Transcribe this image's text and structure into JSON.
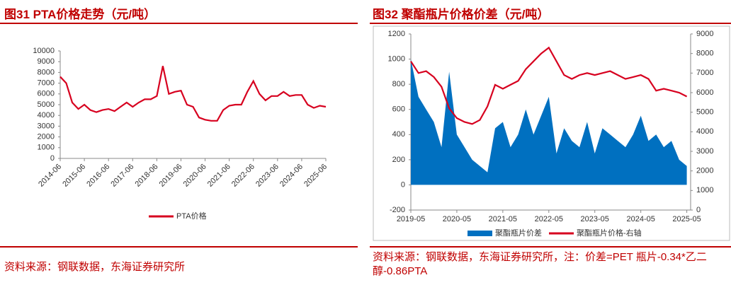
{
  "chart_data": [
    {
      "type": "line",
      "title": "图31  PTA价格走势（元/吨）",
      "source": "资料来源：钢联数据，东海证券研究所",
      "x": [
        "2014-06",
        "2014-09",
        "2014-12",
        "2015-03",
        "2015-06",
        "2015-09",
        "2015-12",
        "2016-03",
        "2016-06",
        "2016-09",
        "2016-12",
        "2017-03",
        "2017-06",
        "2017-09",
        "2017-12",
        "2018-03",
        "2018-06",
        "2018-09",
        "2018-12",
        "2019-03",
        "2019-06",
        "2019-09",
        "2019-12",
        "2020-03",
        "2020-06",
        "2020-09",
        "2020-12",
        "2021-03",
        "2021-06",
        "2021-09",
        "2021-12",
        "2022-03",
        "2022-06",
        "2022-09",
        "2022-12",
        "2023-03",
        "2023-06",
        "2023-09",
        "2023-12",
        "2024-03",
        "2024-06",
        "2024-09",
        "2024-12",
        "2025-03",
        "2025-06"
      ],
      "series": [
        {
          "name": "PTA价格",
          "color": "#d7001f",
          "values": [
            7600,
            7000,
            5200,
            4600,
            5000,
            4500,
            4300,
            4500,
            4600,
            4400,
            4800,
            5200,
            4800,
            5200,
            5500,
            5500,
            5800,
            8600,
            6000,
            6200,
            6300,
            5000,
            4800,
            3800,
            3600,
            3500,
            3500,
            4500,
            4900,
            5000,
            5000,
            6200,
            7200,
            6000,
            5400,
            5800,
            5800,
            6200,
            5800,
            5900,
            5900,
            5000,
            4700,
            4900,
            4800
          ]
        }
      ],
      "xlim": [
        "2014-06",
        "2025-06"
      ],
      "xticks": [
        "2014-06",
        "2015-06",
        "2016-06",
        "2017-06",
        "2018-06",
        "2019-06",
        "2020-06",
        "2021-06",
        "2022-06",
        "2023-06",
        "2024-06",
        "2025-06"
      ],
      "ylim": [
        0,
        10000
      ],
      "yticks": [
        0,
        1000,
        2000,
        3000,
        4000,
        5000,
        6000,
        7000,
        8000,
        9000,
        10000
      ],
      "legend": "bottom"
    },
    {
      "type": "combo",
      "title": "图32  聚酯瓶片价格价差（元/吨）",
      "source": "资料来源：钢联数据，东海证券研究所，注：价差=PET 瓶片-0.34*乙二醇-0.86PTA",
      "x": [
        "2019-05",
        "2019-07",
        "2019-09",
        "2019-11",
        "2020-01",
        "2020-03",
        "2020-05",
        "2020-07",
        "2020-09",
        "2020-11",
        "2021-01",
        "2021-03",
        "2021-05",
        "2021-07",
        "2021-09",
        "2021-11",
        "2022-01",
        "2022-03",
        "2022-05",
        "2022-07",
        "2022-09",
        "2022-11",
        "2023-01",
        "2023-03",
        "2023-05",
        "2023-07",
        "2023-09",
        "2023-11",
        "2024-01",
        "2024-03",
        "2024-05",
        "2024-07",
        "2024-09",
        "2024-11",
        "2025-01",
        "2025-03",
        "2025-05"
      ],
      "series": [
        {
          "name": "聚酯瓶片价差",
          "type": "area",
          "color": "#0070c0",
          "values": [
            1000,
            700,
            600,
            500,
            300,
            900,
            400,
            300,
            200,
            150,
            100,
            450,
            500,
            300,
            400,
            600,
            400,
            550,
            700,
            250,
            450,
            350,
            300,
            500,
            250,
            450,
            400,
            350,
            300,
            400,
            550,
            350,
            400,
            300,
            350,
            200,
            150
          ]
        },
        {
          "name": "聚酯瓶片价格-右轴",
          "type": "line",
          "axis": "y2",
          "color": "#d7001f",
          "values": [
            7600,
            7000,
            7100,
            6800,
            6300,
            5200,
            4700,
            4500,
            4400,
            4600,
            5300,
            6400,
            6200,
            6400,
            6600,
            7200,
            7600,
            8000,
            8300,
            7600,
            6900,
            6700,
            6900,
            7000,
            6900,
            7000,
            7100,
            6900,
            6700,
            6800,
            6900,
            6700,
            6100,
            6200,
            6100,
            6000,
            5800
          ]
        }
      ],
      "xlim": [
        "2019-05",
        "2025-06"
      ],
      "xticks": [
        "2019-05",
        "2020-05",
        "2021-05",
        "2022-05",
        "2023-05",
        "2024-05",
        "2025-05"
      ],
      "ylim": [
        -200,
        1200
      ],
      "yticks": [
        -200,
        0,
        200,
        400,
        600,
        800,
        1000,
        1200
      ],
      "y2lim": [
        0,
        9000
      ],
      "y2ticks": [
        0,
        1000,
        2000,
        3000,
        4000,
        5000,
        6000,
        7000,
        8000,
        9000
      ],
      "legend": "bottom"
    }
  ]
}
